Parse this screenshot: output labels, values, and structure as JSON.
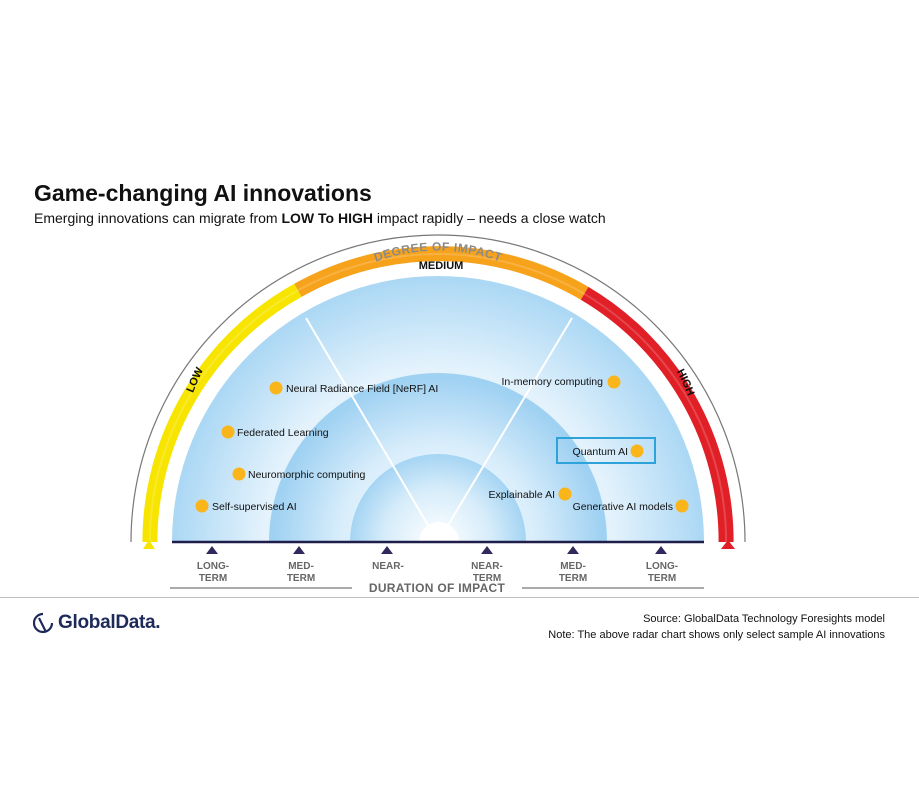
{
  "header": {
    "title": "Game-changing AI innovations",
    "subtitle_before": "Emerging innovations can migrate from ",
    "subtitle_bold": "LOW To HIGH",
    "subtitle_after": " impact rapidly – needs a close watch"
  },
  "degree_axis": {
    "title": "DEGREE OF IMPACT",
    "low": "LOW",
    "medium": "MEDIUM",
    "high": "HIGH",
    "colors": {
      "low": "#f7e500",
      "medium": "#f7a21b",
      "high": "#e01f26"
    }
  },
  "duration_axis": {
    "title": "DURATION OF IMPACT",
    "left_labels": [
      "LONG-TERM",
      "MED-TERM",
      "NEAR-"
    ],
    "right_labels": [
      "NEAR-TERM",
      "MED-TERM",
      "LONG-TERM"
    ]
  },
  "innovations": [
    {
      "name": "Neural Radiance Field [NeRF] AI",
      "impact": "low",
      "term": "med-term"
    },
    {
      "name": "Federated Learning",
      "impact": "low",
      "term": "long-term"
    },
    {
      "name": "Neuromorphic  computing",
      "impact": "low",
      "term": "long-term"
    },
    {
      "name": "Self-supervised AI",
      "impact": "low",
      "term": "long-term"
    },
    {
      "name": "In-memory  computing",
      "impact": "high",
      "term": "long-term"
    },
    {
      "name": "Quantum AI",
      "impact": "high",
      "term": "med-term",
      "highlighted": true
    },
    {
      "name": "Explainable AI",
      "impact": "high",
      "term": "med-term"
    },
    {
      "name": "Generative AI models",
      "impact": "high",
      "term": "long-term"
    }
  ],
  "colors": {
    "dot": "#f9b51a",
    "highlight_box": "#2ea3d9",
    "marker": "#2f2a5e",
    "field_outer": "#cfe8f8",
    "field_inner": "#9fd1f2"
  },
  "footer": {
    "logo": "GlobalData.",
    "source": "Source:  GlobalData Technology Foresights model",
    "note": "Note: The above radar chart shows only select sample AI innovations"
  }
}
